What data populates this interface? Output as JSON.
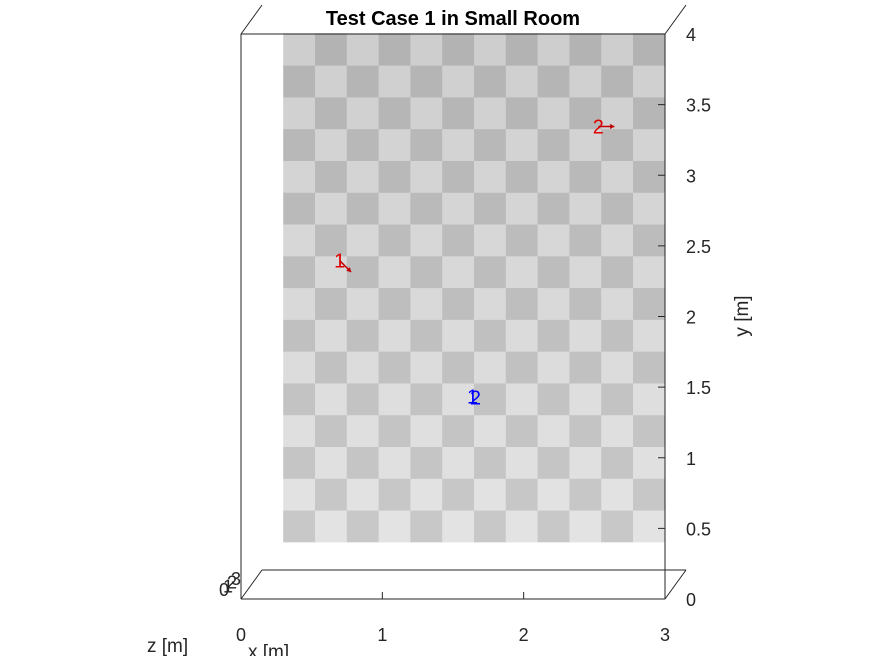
{
  "chart_data": {
    "type": "scatter",
    "title": "Test Case 1 in Small Room",
    "xlabel": "x [m]",
    "ylabel": "y [m]",
    "zlabel": "z [m]",
    "xlim": [
      0,
      3
    ],
    "ylim": [
      0,
      4
    ],
    "zlim": [
      0,
      3
    ],
    "xticks": [
      "0",
      "1",
      "2",
      "3"
    ],
    "yticks": [
      "0",
      "0.5",
      "1",
      "1.5",
      "2",
      "2.5",
      "3",
      "3.5",
      "4"
    ],
    "zticks": [
      "0",
      "1",
      "2",
      "3"
    ],
    "floor": {
      "pattern": "checkerboard",
      "x_range": [
        0.15,
        2.85
      ],
      "y_range": [
        0.2,
        3.8
      ],
      "cols": 12,
      "rows": 16
    },
    "series": [
      {
        "color": "#e00000",
        "points": [
          {
            "label": "1",
            "x": 0.55,
            "y": 2.19,
            "dir_deg": -45
          },
          {
            "label": "2",
            "x": 2.38,
            "y": 3.14,
            "dir_deg": 0
          }
        ]
      },
      {
        "color": "#0000ff",
        "points": [
          {
            "label": "1",
            "x": 1.49,
            "y": 1.23
          },
          {
            "label": "2",
            "x": 1.51,
            "y": 1.22
          }
        ]
      }
    ],
    "grid": false
  }
}
